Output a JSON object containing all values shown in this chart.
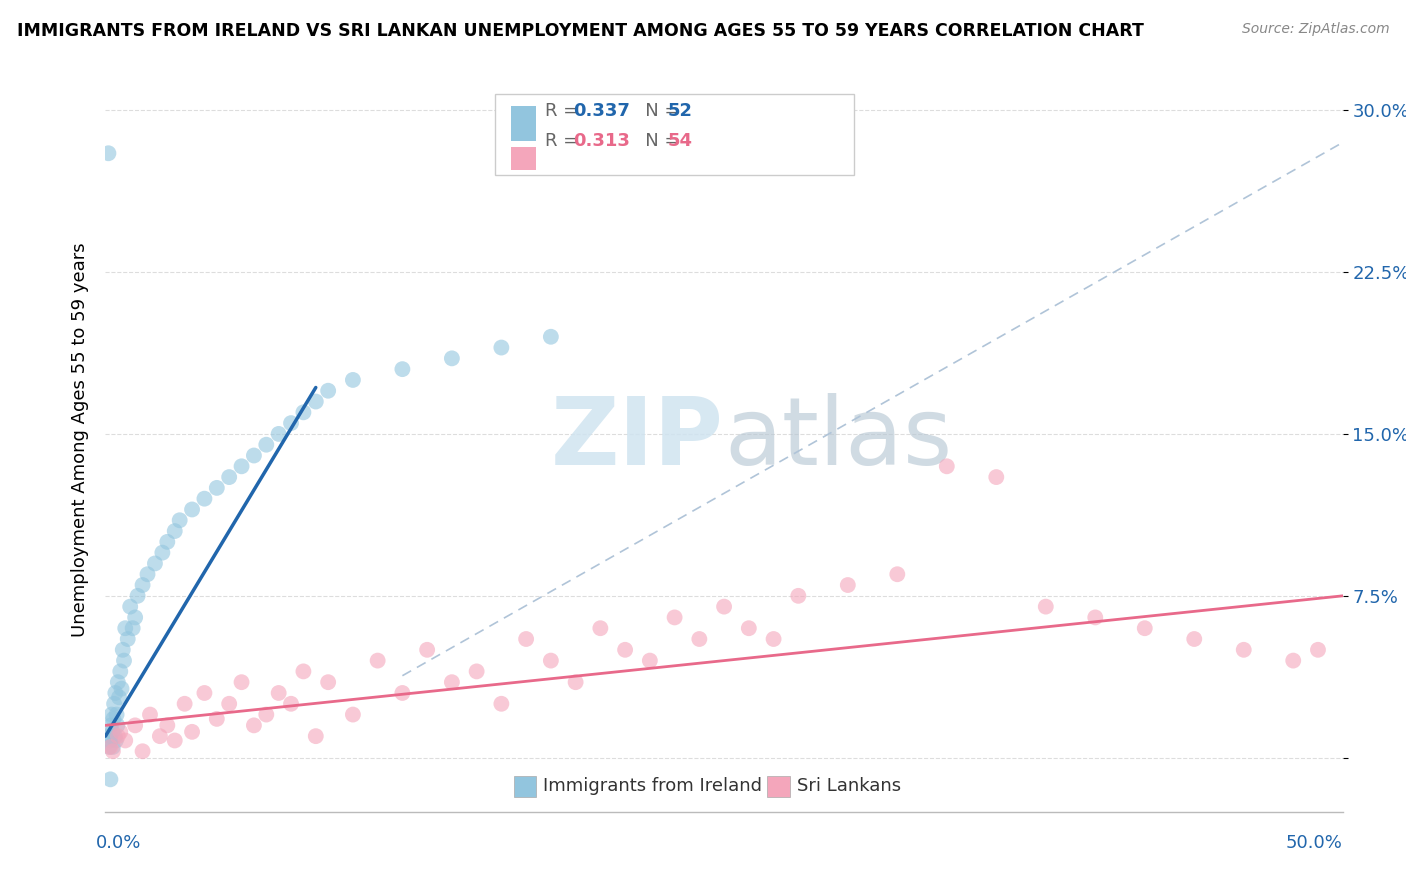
{
  "title": "IMMIGRANTS FROM IRELAND VS SRI LANKAN UNEMPLOYMENT AMONG AGES 55 TO 59 YEARS CORRELATION CHART",
  "source": "Source: ZipAtlas.com",
  "ylabel": "Unemployment Among Ages 55 to 59 years",
  "xlim": [
    0,
    50
  ],
  "ylim": [
    -2.5,
    32
  ],
  "ytick_vals": [
    0,
    7.5,
    15.0,
    22.5,
    30.0
  ],
  "ytick_labels": [
    "",
    "7.5%",
    "15.0%",
    "22.5%",
    "30.0%"
  ],
  "legend_r1": "0.337",
  "legend_n1": "52",
  "legend_r2": "0.313",
  "legend_n2": "54",
  "color_blue": "#92c5de",
  "color_pink": "#f4a6bb",
  "color_blue_line": "#2166ac",
  "color_pink_line": "#e8698a",
  "color_dashed": "#b0c4d8",
  "watermark_color": "#d0e4f0",
  "ireland_x": [
    0.15,
    0.18,
    0.2,
    0.22,
    0.25,
    0.28,
    0.3,
    0.32,
    0.35,
    0.38,
    0.4,
    0.42,
    0.45,
    0.48,
    0.5,
    0.55,
    0.6,
    0.65,
    0.7,
    0.75,
    0.8,
    0.9,
    1.0,
    1.1,
    1.2,
    1.3,
    1.5,
    1.7,
    2.0,
    2.3,
    2.5,
    2.8,
    3.0,
    3.5,
    4.0,
    4.5,
    5.0,
    5.5,
    6.0,
    6.5,
    7.0,
    7.5,
    8.0,
    8.5,
    9.0,
    10.0,
    12.0,
    14.0,
    16.0,
    18.0,
    0.12,
    0.2
  ],
  "ireland_y": [
    0.5,
    1.0,
    0.8,
    1.5,
    2.0,
    1.2,
    0.5,
    1.8,
    2.5,
    1.0,
    3.0,
    0.8,
    2.0,
    1.5,
    3.5,
    2.8,
    4.0,
    3.2,
    5.0,
    4.5,
    6.0,
    5.5,
    7.0,
    6.0,
    6.5,
    7.5,
    8.0,
    8.5,
    9.0,
    9.5,
    10.0,
    10.5,
    11.0,
    11.5,
    12.0,
    12.5,
    13.0,
    13.5,
    14.0,
    14.5,
    15.0,
    15.5,
    16.0,
    16.5,
    17.0,
    17.5,
    18.0,
    18.5,
    19.0,
    19.5,
    28.0,
    -1.0
  ],
  "srilankan_x": [
    0.2,
    0.5,
    0.8,
    1.2,
    1.5,
    1.8,
    2.2,
    2.5,
    2.8,
    3.2,
    3.5,
    4.0,
    4.5,
    5.0,
    5.5,
    6.0,
    6.5,
    7.0,
    7.5,
    8.0,
    8.5,
    9.0,
    10.0,
    11.0,
    12.0,
    13.0,
    14.0,
    15.0,
    16.0,
    17.0,
    18.0,
    19.0,
    20.0,
    21.0,
    22.0,
    23.0,
    24.0,
    25.0,
    26.0,
    27.0,
    28.0,
    30.0,
    32.0,
    34.0,
    36.0,
    38.0,
    40.0,
    42.0,
    44.0,
    46.0,
    48.0,
    49.0,
    0.3,
    0.6
  ],
  "srilankan_y": [
    0.5,
    1.0,
    0.8,
    1.5,
    0.3,
    2.0,
    1.0,
    1.5,
    0.8,
    2.5,
    1.2,
    3.0,
    1.8,
    2.5,
    3.5,
    1.5,
    2.0,
    3.0,
    2.5,
    4.0,
    1.0,
    3.5,
    2.0,
    4.5,
    3.0,
    5.0,
    3.5,
    4.0,
    2.5,
    5.5,
    4.5,
    3.5,
    6.0,
    5.0,
    4.5,
    6.5,
    5.5,
    7.0,
    6.0,
    5.5,
    7.5,
    8.0,
    8.5,
    13.5,
    13.0,
    7.0,
    6.5,
    6.0,
    5.5,
    5.0,
    4.5,
    5.0,
    0.3,
    1.2
  ]
}
